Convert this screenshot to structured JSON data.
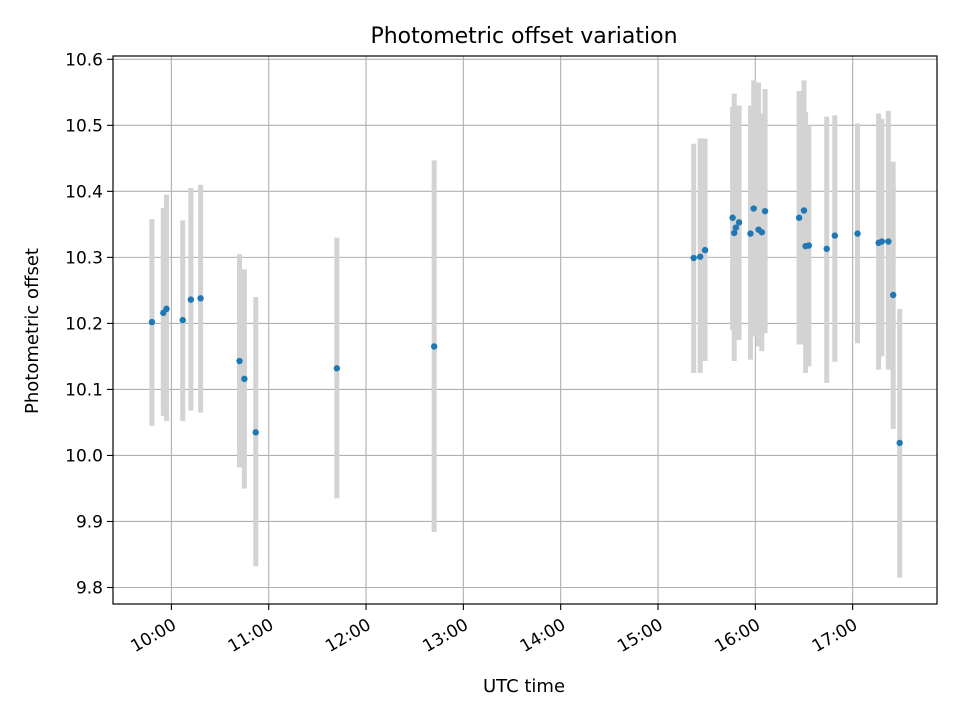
{
  "chart_data": {
    "type": "scatter",
    "title": "Photometric offset variation",
    "xlabel": "UTC time",
    "ylabel": "Photometric offset",
    "xlim": [
      "09:24",
      "17:52"
    ],
    "ylim": [
      9.775,
      10.605
    ],
    "grid": true,
    "x_ticks": [
      "10:00",
      "11:00",
      "12:00",
      "13:00",
      "14:00",
      "15:00",
      "16:00",
      "17:00"
    ],
    "y_ticks": [
      "9.8",
      "9.9",
      "10.0",
      "10.1",
      "10.2",
      "10.3",
      "10.4",
      "10.5",
      "10.6"
    ],
    "marker_color": "#1f77b4",
    "errorbar_color": "#d3d3d3",
    "series": [
      {
        "points": [
          {
            "x": "09:48",
            "y": 10.202,
            "ymin": 10.045,
            "ymax": 10.358
          },
          {
            "x": "09:55",
            "y": 10.216,
            "ymin": 10.06,
            "ymax": 10.375
          },
          {
            "x": "09:57",
            "y": 10.222,
            "ymin": 10.052,
            "ymax": 10.395
          },
          {
            "x": "10:07",
            "y": 10.205,
            "ymin": 10.052,
            "ymax": 10.356
          },
          {
            "x": "10:12",
            "y": 10.236,
            "ymin": 10.068,
            "ymax": 10.405
          },
          {
            "x": "10:18",
            "y": 10.238,
            "ymin": 10.065,
            "ymax": 10.41
          },
          {
            "x": "10:42",
            "y": 10.143,
            "ymin": 9.982,
            "ymax": 10.305
          },
          {
            "x": "10:45",
            "y": 10.116,
            "ymin": 9.95,
            "ymax": 10.282
          },
          {
            "x": "10:52",
            "y": 10.035,
            "ymin": 9.832,
            "ymax": 10.24
          },
          {
            "x": "11:42",
            "y": 10.132,
            "ymin": 9.935,
            "ymax": 10.33
          },
          {
            "x": "12:42",
            "y": 10.165,
            "ymin": 9.884,
            "ymax": 10.447
          },
          {
            "x": "15:22",
            "y": 10.299,
            "ymin": 10.125,
            "ymax": 10.472
          },
          {
            "x": "15:26",
            "y": 10.301,
            "ymin": 10.125,
            "ymax": 10.48
          },
          {
            "x": "15:29",
            "y": 10.311,
            "ymin": 10.143,
            "ymax": 10.48
          },
          {
            "x": "15:46",
            "y": 10.36,
            "ymin": 10.19,
            "ymax": 10.528
          },
          {
            "x": "15:47",
            "y": 10.337,
            "ymin": 10.143,
            "ymax": 10.548
          },
          {
            "x": "15:48",
            "y": 10.345,
            "ymin": 10.175,
            "ymax": 10.53
          },
          {
            "x": "15:50",
            "y": 10.353,
            "ymin": 10.175,
            "ymax": 10.53
          },
          {
            "x": "15:57",
            "y": 10.336,
            "ymin": 10.145,
            "ymax": 10.53
          },
          {
            "x": "15:59",
            "y": 10.374,
            "ymin": 10.18,
            "ymax": 10.568
          },
          {
            "x": "16:02",
            "y": 10.342,
            "ymin": 10.165,
            "ymax": 10.565
          },
          {
            "x": "16:04",
            "y": 10.338,
            "ymin": 10.158,
            "ymax": 10.518
          },
          {
            "x": "16:06",
            "y": 10.37,
            "ymin": 10.185,
            "ymax": 10.555
          },
          {
            "x": "16:27",
            "y": 10.36,
            "ymin": 10.168,
            "ymax": 10.552
          },
          {
            "x": "16:30",
            "y": 10.371,
            "ymin": 10.168,
            "ymax": 10.568
          },
          {
            "x": "16:31",
            "y": 10.317,
            "ymin": 10.125,
            "ymax": 10.52
          },
          {
            "x": "16:33",
            "y": 10.318,
            "ymin": 10.135,
            "ymax": 10.5
          },
          {
            "x": "16:44",
            "y": 10.313,
            "ymin": 10.11,
            "ymax": 10.513
          },
          {
            "x": "16:49",
            "y": 10.333,
            "ymin": 10.142,
            "ymax": 10.515
          },
          {
            "x": "17:03",
            "y": 10.336,
            "ymin": 10.17,
            "ymax": 10.503
          },
          {
            "x": "17:16",
            "y": 10.322,
            "ymin": 10.13,
            "ymax": 10.518
          },
          {
            "x": "17:18",
            "y": 10.324,
            "ymin": 10.15,
            "ymax": 10.51
          },
          {
            "x": "17:22",
            "y": 10.324,
            "ymin": 10.13,
            "ymax": 10.522
          },
          {
            "x": "17:25",
            "y": 10.243,
            "ymin": 10.04,
            "ymax": 10.445
          },
          {
            "x": "17:29",
            "y": 10.019,
            "ymin": 9.815,
            "ymax": 10.222
          }
        ]
      }
    ]
  }
}
